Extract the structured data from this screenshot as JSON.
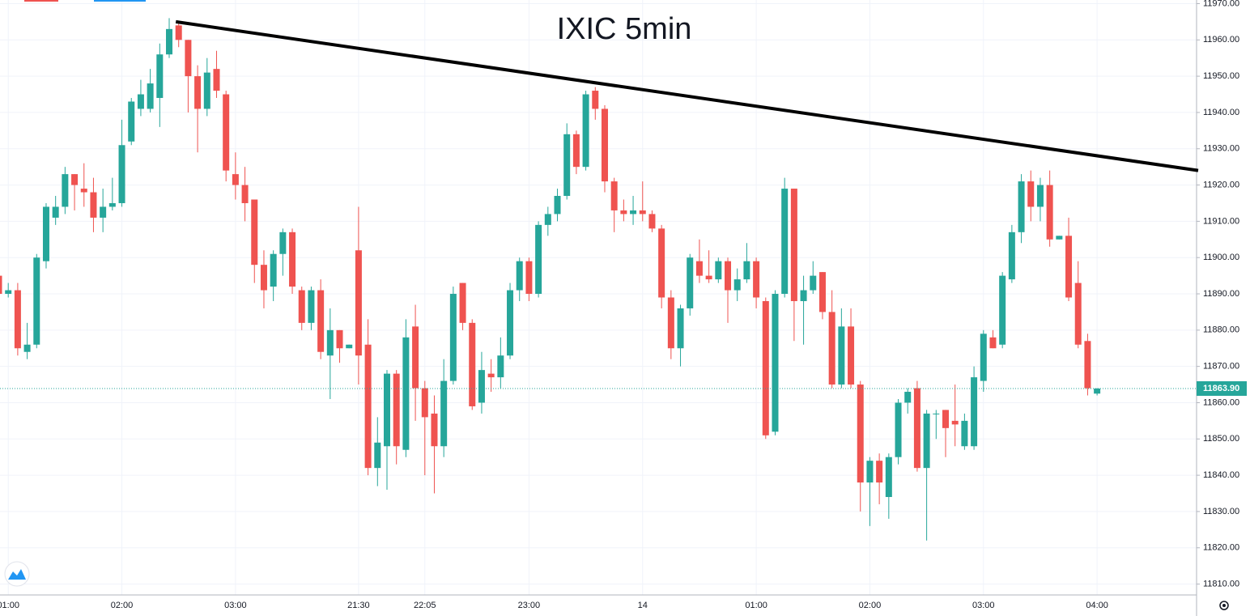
{
  "chart_data": {
    "type": "candlestick",
    "title": "IXIC 5min",
    "categories": [
      null,
      "01:00",
      null,
      null,
      null,
      null,
      null,
      null,
      null,
      null,
      null,
      null,
      null,
      "02:00",
      null,
      null,
      null,
      null,
      null,
      null,
      null,
      null,
      null,
      null,
      null,
      "03:00",
      null,
      null,
      null,
      null,
      null,
      null,
      null,
      null,
      null,
      null,
      null,
      null,
      "21:30",
      null,
      null,
      null,
      null,
      null,
      null,
      "22:05",
      null,
      null,
      null,
      null,
      null,
      null,
      null,
      null,
      null,
      null,
      "23:00",
      null,
      null,
      null,
      null,
      null,
      null,
      null,
      null,
      null,
      null,
      null,
      "14",
      null,
      null,
      null,
      null,
      null,
      null,
      null,
      null,
      null,
      null,
      null,
      "01:00",
      null,
      null,
      null,
      null,
      null,
      null,
      null,
      null,
      null,
      null,
      null,
      "02:00",
      null,
      null,
      null,
      null,
      null,
      null,
      null,
      null,
      null,
      null,
      null,
      "03:00",
      null,
      null,
      null,
      null,
      null,
      null,
      null,
      null,
      null,
      null,
      null,
      "04:00"
    ],
    "open": [
      11895,
      11890,
      11891,
      11874,
      11876,
      11899,
      11911,
      11914,
      11923,
      11919,
      11918,
      11911,
      11914,
      11915,
      11932,
      11941,
      11941,
      11944,
      11956,
      11964,
      11960,
      11950,
      11941,
      11952,
      11945,
      11923,
      11920,
      11916,
      11898,
      11892,
      11901,
      11907,
      11891,
      11882,
      11891,
      11873,
      11880,
      11875,
      11902,
      11876,
      11842,
      11848,
      11868,
      11847,
      11881,
      11864,
      11857,
      11848,
      11866,
      11893,
      11882,
      11860,
      11868,
      11867,
      11873,
      11891,
      11899,
      11890,
      11909,
      11912,
      11917,
      11934,
      11925,
      11946,
      11941,
      11921,
      11913,
      11912,
      11913,
      11912,
      11908,
      11889,
      11875,
      11886,
      11899,
      11895,
      11894,
      11899,
      11891,
      11894,
      11899,
      11888,
      11852,
      11890,
      11919,
      11888,
      11891,
      11896,
      11885,
      11865,
      11881,
      11865,
      11838,
      11844,
      11834,
      11845,
      11860,
      11864,
      11842,
      11857,
      11858,
      11855,
      11848,
      11848,
      11866,
      11878,
      11876,
      11894,
      11907,
      11921,
      11914,
      11920,
      11905,
      11906,
      11893,
      11877,
      11862.5
    ],
    "high": [
      11895,
      11893,
      11893,
      11882,
      11901,
      11915,
      11917,
      11925,
      11923,
      11926,
      11922,
      11919,
      11922,
      11938,
      11944,
      11949,
      11952,
      11959,
      11966,
      11965,
      11960,
      11953,
      11955,
      11957,
      11946,
      11929,
      11925,
      11916,
      11902,
      11902,
      11908,
      11908,
      11892,
      11892,
      11894,
      11886,
      11880,
      11876,
      11914,
      11883,
      11856,
      11869,
      11869,
      11883,
      11887,
      11866,
      11862,
      11872,
      11892,
      11893,
      11883,
      11874,
      11872,
      11878,
      11893,
      11900,
      11900,
      11910,
      11914,
      11919,
      11937,
      11935,
      11946,
      11947,
      11942,
      11922,
      11916,
      11917,
      11921,
      11913,
      11909,
      11891,
      11887,
      11901,
      11905,
      11902,
      11900,
      11900,
      11897,
      11904,
      11900,
      11889,
      11891,
      11922,
      11919,
      11895,
      11899,
      11896,
      11891,
      11886,
      11886,
      11866,
      11845,
      11846,
      11846,
      11861,
      11864,
      11866,
      11858,
      11858,
      11858,
      11865,
      11857,
      11870,
      11880,
      11880,
      11896,
      11909,
      11923,
      11924,
      11922,
      11924,
      11906,
      11911,
      11899,
      11879,
      11864
    ],
    "low": [
      11888,
      11889,
      11873,
      11872,
      11875,
      11897,
      11909,
      11912,
      11913,
      11914,
      11907,
      11907,
      11913,
      11914,
      11931,
      11939,
      11940,
      11936,
      11955,
      11958,
      11940,
      11929,
      11939,
      11944,
      11921,
      11916,
      11910,
      11893,
      11886,
      11888,
      11895,
      11890,
      11880,
      11880,
      11872,
      11861,
      11871,
      11875,
      11865,
      11840,
      11837,
      11836,
      11843,
      11845,
      11855,
      11840,
      11835,
      11845,
      11865,
      11880,
      11858,
      11857,
      11863,
      11864,
      11872,
      11888,
      11888,
      11889,
      11906,
      11910,
      11916,
      11923,
      11924,
      11938,
      11918,
      11907,
      11910,
      11909,
      11910,
      11907,
      11886,
      11872,
      11870,
      11884,
      11893,
      11893,
      11893,
      11882,
      11888,
      11893,
      11886,
      11850,
      11851,
      11889,
      11877,
      11876,
      11890,
      11883,
      11864,
      11864,
      11864,
      11830,
      11826,
      11832,
      11828,
      11843,
      11857,
      11841,
      11822,
      11850,
      11845,
      11848,
      11847,
      11847,
      11863,
      11875,
      11875,
      11893,
      11904,
      11910,
      11910,
      11903,
      11905,
      11888,
      11875,
      11862,
      11862
    ],
    "close": [
      11890,
      11891,
      11875,
      11876,
      11900,
      11914,
      11914,
      11923,
      11920,
      11918,
      11911,
      11914,
      11915,
      11931,
      11943,
      11945,
      11948,
      11956,
      11963,
      11960,
      11950,
      11941,
      11951,
      11946,
      11924,
      11920,
      11915,
      11898,
      11891,
      11901,
      11907,
      11892,
      11882,
      11891,
      11874,
      11880,
      11875,
      11876,
      11873,
      11842,
      11849,
      11868,
      11848,
      11878,
      11864,
      11856,
      11848,
      11866,
      11890,
      11882,
      11859,
      11869,
      11867,
      11873,
      11891,
      11899,
      11890,
      11909,
      11912,
      11917,
      11934,
      11925,
      11945,
      11941,
      11921,
      11913,
      11912,
      11913,
      11912,
      11908,
      11889,
      11875,
      11886,
      11900,
      11895,
      11894,
      11899,
      11891,
      11894,
      11899,
      11889,
      11851,
      11890,
      11919,
      11888,
      11891,
      11895,
      11885,
      11865,
      11881,
      11865,
      11838,
      11844,
      11838,
      11845,
      11860,
      11863,
      11842,
      11857,
      11857,
      11853,
      11854,
      11855,
      11867,
      11879,
      11875,
      11895,
      11907,
      11921,
      11914,
      11920,
      11905,
      11906,
      11889,
      11876,
      11864,
      11863.9
    ],
    "up_color": "#26a69a",
    "down_color": "#ef5350",
    "ylim": [
      11807,
      11971
    ],
    "yticks": [
      {
        "value": 11810,
        "label": "11810.00"
      },
      {
        "value": 11820,
        "label": "11820.00"
      },
      {
        "value": 11830,
        "label": "11830.00"
      },
      {
        "value": 11840,
        "label": "11840.00"
      },
      {
        "value": 11850,
        "label": "11850.00"
      },
      {
        "value": 11860,
        "label": "11860.00"
      },
      {
        "value": 11870,
        "label": "11870.00"
      },
      {
        "value": 11880,
        "label": "11880.00"
      },
      {
        "value": 11890,
        "label": "11890.00"
      },
      {
        "value": 11900,
        "label": "11900.00"
      },
      {
        "value": 11910,
        "label": "11910.00"
      },
      {
        "value": 11920,
        "label": "11920.00"
      },
      {
        "value": 11930,
        "label": "11930.00"
      },
      {
        "value": 11940,
        "label": "11940.00"
      },
      {
        "value": 11950,
        "label": "11950.00"
      },
      {
        "value": 11960,
        "label": "11960.00"
      },
      {
        "value": 11970,
        "label": "11970.00"
      }
    ],
    "last_price": {
      "value": 11863.9,
      "label": "11863.90"
    },
    "trendline": [
      11965,
      11924
    ],
    "grid": true
  }
}
